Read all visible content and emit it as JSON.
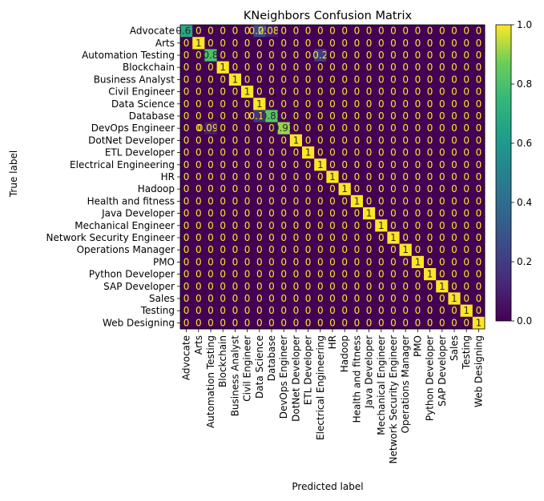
{
  "chart_data": {
    "type": "heatmap",
    "title": "KNeighbors Confusion Matrix",
    "xlabel": "Predicted label",
    "ylabel": "True label",
    "colormap": "viridis",
    "colorbar": {
      "min": 0.0,
      "max": 1.0,
      "ticks": [
        "0.0",
        "0.2",
        "0.4",
        "0.6",
        "0.8",
        "1.0"
      ]
    },
    "grid": false,
    "categories": [
      "Advocate",
      "Arts",
      "Automation Testing",
      "Blockchain",
      "Business Analyst",
      "Civil Engineer",
      "Data Science",
      "Database",
      "DevOps Engineer",
      "DotNet Developer",
      "ETL Developer",
      "Electrical Engineering",
      "HR",
      "Hadoop",
      "Health and fitness",
      "Java Developer",
      "Mechanical Engineer",
      "Network Security Engineer",
      "Operations Manager",
      "PMO",
      "Python Developer",
      "SAP Developer",
      "Sales",
      "Testing",
      "Web Designing"
    ],
    "cells": [
      {
        "row": 0,
        "col": 0,
        "value": 0.67,
        "label": "0.67"
      },
      {
        "row": 0,
        "col": 6,
        "value": 0.25,
        "label": "0.25"
      },
      {
        "row": 0,
        "col": 7,
        "value": 0.083,
        "label": "0.083"
      },
      {
        "row": 1,
        "col": 1,
        "value": 1,
        "label": "1"
      },
      {
        "row": 2,
        "col": 2,
        "value": 0.8,
        "label": "0.8"
      },
      {
        "row": 2,
        "col": 11,
        "value": 0.2,
        "label": "0.2"
      },
      {
        "row": 3,
        "col": 3,
        "value": 1,
        "label": "1"
      },
      {
        "row": 4,
        "col": 4,
        "value": 1,
        "label": "1"
      },
      {
        "row": 5,
        "col": 5,
        "value": 1,
        "label": "1"
      },
      {
        "row": 6,
        "col": 6,
        "value": 1,
        "label": "1"
      },
      {
        "row": 7,
        "col": 6,
        "value": 0.17,
        "label": "0.17"
      },
      {
        "row": 7,
        "col": 7,
        "value": 0.83,
        "label": "0.83"
      },
      {
        "row": 8,
        "col": 2,
        "value": 0.091,
        "label": "0.091"
      },
      {
        "row": 8,
        "col": 8,
        "value": 0.91,
        "label": "0.91"
      },
      {
        "row": 9,
        "col": 9,
        "value": 1,
        "label": "1"
      },
      {
        "row": 10,
        "col": 10,
        "value": 1,
        "label": "1"
      },
      {
        "row": 11,
        "col": 11,
        "value": 1,
        "label": "1"
      },
      {
        "row": 12,
        "col": 12,
        "value": 1,
        "label": "1"
      },
      {
        "row": 13,
        "col": 13,
        "value": 1,
        "label": "1"
      },
      {
        "row": 14,
        "col": 14,
        "value": 1,
        "label": "1"
      },
      {
        "row": 15,
        "col": 15,
        "value": 1,
        "label": "1"
      },
      {
        "row": 16,
        "col": 16,
        "value": 1,
        "label": "1"
      },
      {
        "row": 17,
        "col": 17,
        "value": 1,
        "label": "1"
      },
      {
        "row": 18,
        "col": 18,
        "value": 1,
        "label": "1"
      },
      {
        "row": 19,
        "col": 19,
        "value": 1,
        "label": "1"
      },
      {
        "row": 20,
        "col": 20,
        "value": 1,
        "label": "1"
      },
      {
        "row": 21,
        "col": 21,
        "value": 1,
        "label": "1"
      },
      {
        "row": 22,
        "col": 22,
        "value": 1,
        "label": "1"
      },
      {
        "row": 23,
        "col": 23,
        "value": 1,
        "label": "1"
      },
      {
        "row": 24,
        "col": 24,
        "value": 1,
        "label": "1"
      }
    ],
    "zero_label": "0"
  }
}
